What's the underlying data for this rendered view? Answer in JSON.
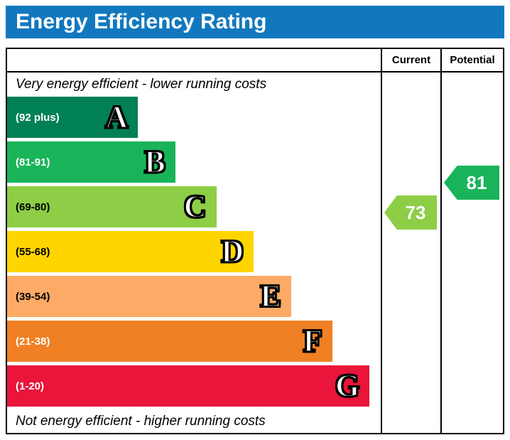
{
  "title": "Energy Efficiency Rating",
  "colors": {
    "banner": "#1278be",
    "border": "#000000"
  },
  "chart_data": {
    "type": "bar",
    "title": "Energy Efficiency Rating",
    "columns": [
      "Current",
      "Potential"
    ],
    "top_label": "Very energy efficient - lower running costs",
    "bottom_label": "Not energy efficient - higher running costs",
    "bands": [
      {
        "letter": "A",
        "range_label": "(92 plus)",
        "min": 92,
        "max": 100,
        "color": "#008054",
        "width_pct": 35,
        "text_color": "#ffffff"
      },
      {
        "letter": "B",
        "range_label": "(81-91)",
        "min": 81,
        "max": 91,
        "color": "#19b459",
        "width_pct": 45,
        "text_color": "#ffffff"
      },
      {
        "letter": "C",
        "range_label": "(69-80)",
        "min": 69,
        "max": 80,
        "color": "#8dce46",
        "width_pct": 56,
        "text_color": "#000000"
      },
      {
        "letter": "D",
        "range_label": "(55-68)",
        "min": 55,
        "max": 68,
        "color": "#ffd500",
        "width_pct": 66,
        "text_color": "#000000"
      },
      {
        "letter": "E",
        "range_label": "(39-54)",
        "min": 39,
        "max": 54,
        "color": "#fcaa65",
        "width_pct": 76,
        "text_color": "#000000"
      },
      {
        "letter": "F",
        "range_label": "(21-38)",
        "min": 21,
        "max": 38,
        "color": "#ef8023",
        "width_pct": 87,
        "text_color": "#ffffff"
      },
      {
        "letter": "G",
        "range_label": "(1-20)",
        "min": 1,
        "max": 20,
        "color": "#e9153b",
        "width_pct": 97,
        "text_color": "#ffffff"
      }
    ],
    "current": {
      "label": "Current",
      "value": 73,
      "band": "C",
      "color": "#8dce46"
    },
    "potential": {
      "label": "Potential",
      "value": 81,
      "band": "B",
      "color": "#19b459"
    }
  }
}
